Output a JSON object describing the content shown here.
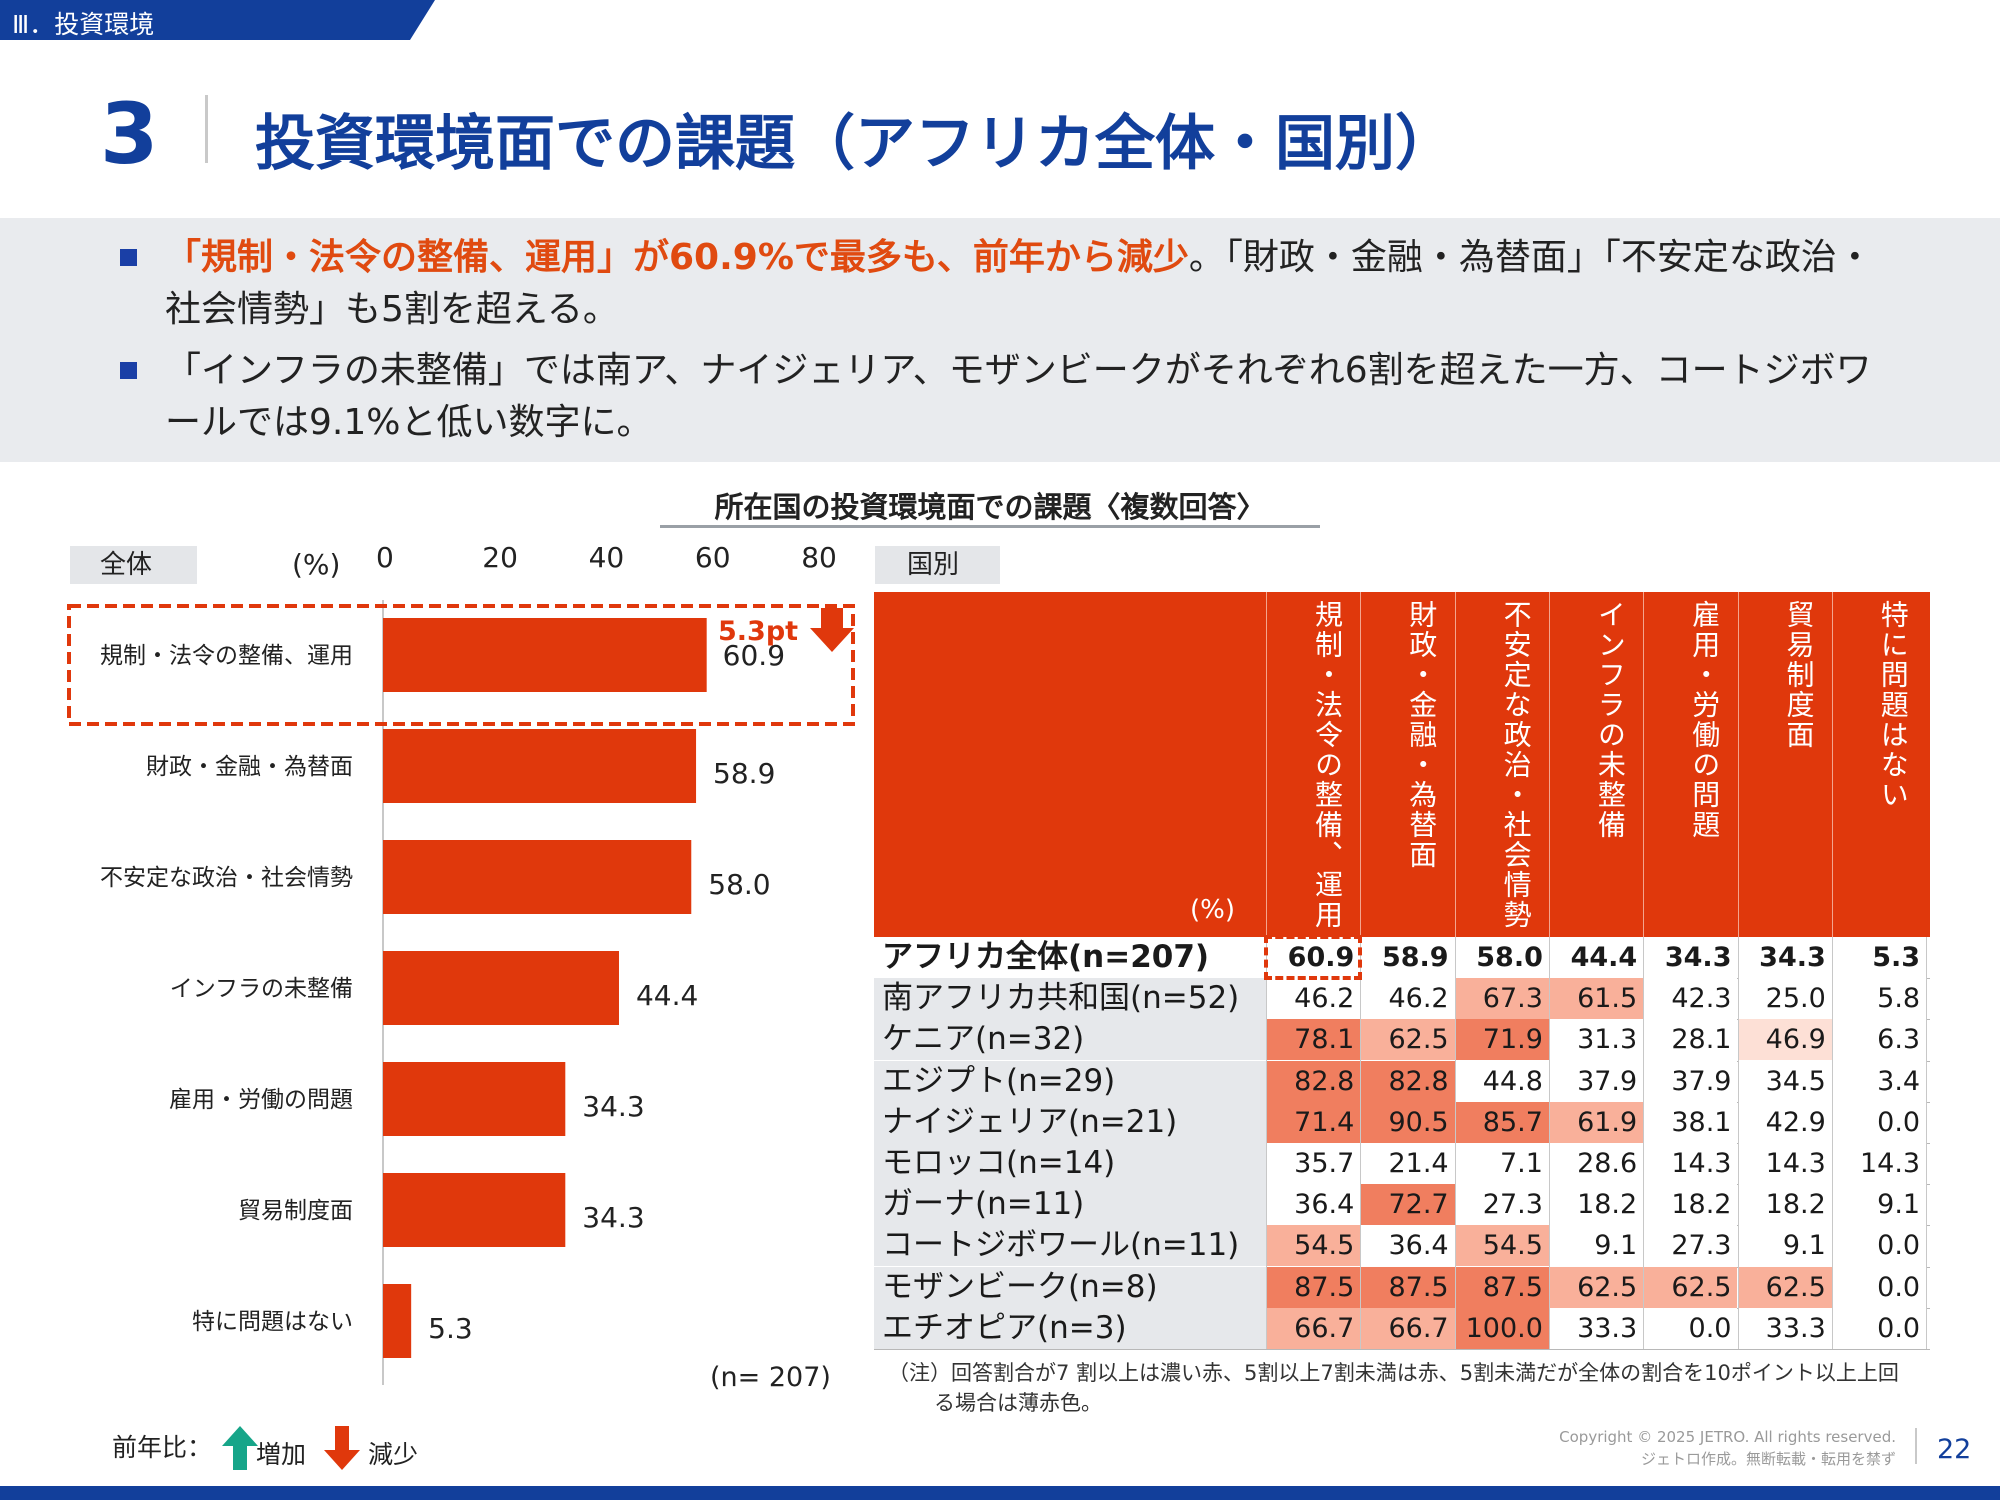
{
  "section_tag": "Ⅲ．投資環境",
  "page_number": "3",
  "page_title": "投資環境面での課題（アフリカ全体・国別）",
  "summary": {
    "bullet1_highlight": "「規制・法令の整備、運用」が60.9%で最多も、前年から減少",
    "bullet1_rest": "。「財政・金融・為替面」「不安定な政治・社会情勢」も5割を超える。",
    "bullet2": "「インフラの未整備」では南ア、ナイジェリア、モザンビークがそれぞれ6割を超えた一方、コートジボワールでは9.1%と低い数字に。"
  },
  "chart_title": "所在国の投資環境面での課題〈複数回答〉",
  "labels": {
    "overall_tag": "全体",
    "country_tag": "国別",
    "pct_unit": "(%)",
    "n_label": "(n= 207)",
    "table_pct": "(%)",
    "legend_prefix": "前年比：",
    "legend_up": "増加",
    "legend_down": "減少",
    "change_callout": "5.3pt",
    "note": "（注）回答割合が7 割以上は濃い赤、5割以上7割未満は赤、5割未満だが全体の割合を10ポイント以上上回る場合は薄赤色。"
  },
  "footer": {
    "copyright_line1": "Copyright © 2025 JETRO. All rights reserved.",
    "copyright_line2": "ジェトロ作成。無断転載・転用を禁ず",
    "page_no": "22"
  },
  "colors": {
    "brand_blue": "#123f9b",
    "bar_red": "#e0380c",
    "dark_red_cell": "#f07e5f",
    "red_cell": "#f9b09a",
    "light_red_cell": "#fde0d6",
    "up_arrow": "#17a589",
    "down_arrow": "#e0380c"
  },
  "chart_data": [
    {
      "type": "bar",
      "orientation": "horizontal",
      "categories": [
        "規制・法令の整備、運用",
        "財政・金融・為替面",
        "不安定な政治・社会情勢",
        "インフラの未整備",
        "雇用・労働の問題",
        "貿易制度面",
        "特に問題はない"
      ],
      "values": [
        60.9,
        58.9,
        58.0,
        44.4,
        34.3,
        34.3,
        5.3
      ],
      "value_labels": [
        "60.9",
        "58.9",
        "58.0",
        "44.4",
        "34.3",
        "34.3",
        "5.3"
      ],
      "xticks": [
        "0",
        "20",
        "40",
        "60",
        "80"
      ],
      "xlim": [
        0,
        80
      ],
      "ylabel": "",
      "xlabel": "(%)",
      "grid": false,
      "annotation": {
        "category": "規制・法令の整備、運用",
        "text": "5.3pt",
        "direction": "down"
      }
    },
    {
      "type": "table",
      "columns": [
        "規制・法令の整備、運用",
        "財政・金融・為替面",
        "不安定な政治・社会情勢",
        "インフラの未整備",
        "雇用・労働の問題",
        "貿易制度面",
        "特に問題はない"
      ],
      "rows": [
        {
          "label": "アフリカ全体(n=207)",
          "values": [
            "60.9",
            "58.9",
            "58.0",
            "44.4",
            "34.3",
            "34.3",
            "5.3"
          ],
          "shade": [
            "n",
            "n",
            "n",
            "n",
            "n",
            "n",
            "n"
          ]
        },
        {
          "label": "南アフリカ共和国(n=52)",
          "values": [
            "46.2",
            "46.2",
            "67.3",
            "61.5",
            "42.3",
            "25.0",
            "5.8"
          ],
          "shade": [
            "n",
            "n",
            "r",
            "r",
            "n",
            "n",
            "n"
          ]
        },
        {
          "label": "ケニア(n=32)",
          "values": [
            "78.1",
            "62.5",
            "71.9",
            "31.3",
            "28.1",
            "46.9",
            "6.3"
          ],
          "shade": [
            "d",
            "r",
            "d",
            "n",
            "n",
            "l",
            "n"
          ]
        },
        {
          "label": "エジプト(n=29)",
          "values": [
            "82.8",
            "82.8",
            "44.8",
            "37.9",
            "37.9",
            "34.5",
            "3.4"
          ],
          "shade": [
            "d",
            "d",
            "n",
            "n",
            "n",
            "n",
            "n"
          ]
        },
        {
          "label": "ナイジェリア(n=21)",
          "values": [
            "71.4",
            "90.5",
            "85.7",
            "61.9",
            "38.1",
            "42.9",
            "0.0"
          ],
          "shade": [
            "d",
            "d",
            "d",
            "r",
            "n",
            "n",
            "n"
          ]
        },
        {
          "label": "モロッコ(n=14)",
          "values": [
            "35.7",
            "21.4",
            "7.1",
            "28.6",
            "14.3",
            "14.3",
            "14.3"
          ],
          "shade": [
            "n",
            "n",
            "n",
            "n",
            "n",
            "n",
            "n"
          ]
        },
        {
          "label": "ガーナ(n=11)",
          "values": [
            "36.4",
            "72.7",
            "27.3",
            "18.2",
            "18.2",
            "18.2",
            "9.1"
          ],
          "shade": [
            "n",
            "d",
            "n",
            "n",
            "n",
            "n",
            "n"
          ]
        },
        {
          "label": "コートジボワール(n=11)",
          "values": [
            "54.5",
            "36.4",
            "54.5",
            "9.1",
            "27.3",
            "9.1",
            "0.0"
          ],
          "shade": [
            "r",
            "n",
            "r",
            "n",
            "n",
            "n",
            "n"
          ]
        },
        {
          "label": "モザンビーク(n=8)",
          "values": [
            "87.5",
            "87.5",
            "87.5",
            "62.5",
            "62.5",
            "62.5",
            "0.0"
          ],
          "shade": [
            "d",
            "d",
            "d",
            "r",
            "r",
            "r",
            "n"
          ]
        },
        {
          "label": "エチオピア(n=3)",
          "values": [
            "66.7",
            "66.7",
            "100.0",
            "33.3",
            "0.0",
            "33.3",
            "0.0"
          ],
          "shade": [
            "r",
            "r",
            "d",
            "n",
            "n",
            "n",
            "n"
          ]
        }
      ]
    }
  ]
}
